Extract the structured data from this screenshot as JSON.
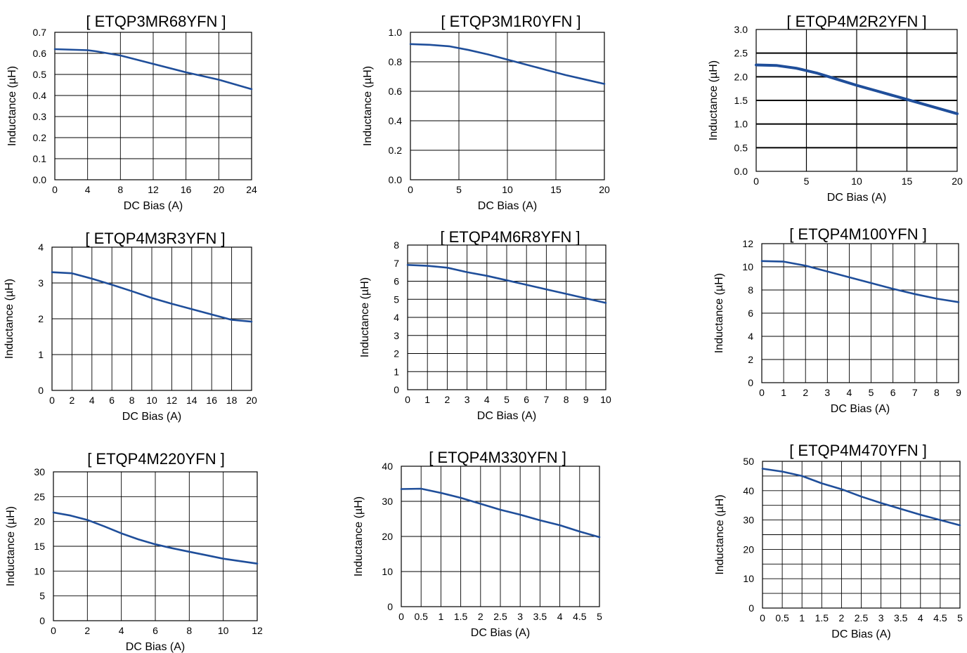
{
  "colors": {
    "curve": "#1f4e9a",
    "grid": "#000000",
    "background": "#ffffff"
  },
  "chart_data": [
    {
      "type": "line",
      "title": "[ ETQP3MR68YFN ]",
      "xlabel": "DC Bias (A)",
      "ylabel": "Inductance (µH)",
      "xlim": [
        0,
        24
      ],
      "ylim": [
        0,
        0.7
      ],
      "xticks": [
        "0",
        "4",
        "8",
        "12",
        "16",
        "20",
        "24"
      ],
      "yticks": [
        "0.0",
        "0.1",
        "0.2",
        "0.3",
        "0.4",
        "0.5",
        "0.6",
        "0.7"
      ],
      "x_grid_count": 6,
      "y_grid_count": 7,
      "grid": true,
      "series": [
        {
          "x": [
            0,
            4,
            5,
            8,
            12,
            16,
            20,
            24
          ],
          "values": [
            0.62,
            0.615,
            0.61,
            0.59,
            0.55,
            0.51,
            0.475,
            0.43
          ]
        }
      ]
    },
    {
      "type": "line",
      "title": "[ ETQP3M1R0YFN ]",
      "xlabel": "DC Bias (A)",
      "ylabel": "Inductance (µH)",
      "xlim": [
        0,
        20
      ],
      "ylim": [
        0,
        1.0
      ],
      "xticks": [
        "0",
        "5",
        "10",
        "15",
        "20"
      ],
      "yticks": [
        "0.0",
        "0.2",
        "0.4",
        "0.6",
        "0.8",
        "1.0"
      ],
      "x_grid_count": 4,
      "y_grid_count": 5,
      "grid": true,
      "series": [
        {
          "x": [
            0,
            2,
            4,
            6,
            8,
            10,
            12,
            14,
            16,
            18,
            20
          ],
          "values": [
            0.92,
            0.915,
            0.905,
            0.88,
            0.85,
            0.815,
            0.78,
            0.745,
            0.71,
            0.68,
            0.65
          ]
        }
      ]
    },
    {
      "type": "line",
      "title": "[ ETQP4M2R2YFN ]",
      "xlabel": "DC Bias (A)",
      "ylabel": "Inductance (µH)",
      "xlim": [
        0,
        20
      ],
      "ylim": [
        0,
        3.0
      ],
      "xticks": [
        "0",
        "5",
        "10",
        "15",
        "20"
      ],
      "yticks": [
        "0.0",
        "0.5",
        "1.0",
        "1.5",
        "2.0",
        "2.5",
        "3.0"
      ],
      "x_grid_count": 4,
      "y_grid_count": 6,
      "grid": true,
      "series": [
        {
          "x": [
            0,
            2,
            4,
            6,
            8,
            10,
            12,
            14,
            16,
            18,
            20
          ],
          "values": [
            2.25,
            2.24,
            2.18,
            2.08,
            1.95,
            1.82,
            1.7,
            1.58,
            1.46,
            1.34,
            1.22
          ]
        }
      ]
    },
    {
      "type": "line",
      "title": "[ ETQP4M3R3YFN ]",
      "xlabel": "DC Bias (A)",
      "ylabel": "Inductance (µH)",
      "xlim": [
        0,
        20
      ],
      "ylim": [
        0,
        4
      ],
      "xticks": [
        "0",
        "2",
        "4",
        "6",
        "8",
        "10",
        "12",
        "14",
        "16",
        "18",
        "20"
      ],
      "yticks": [
        "0",
        "1",
        "2",
        "3",
        "4"
      ],
      "x_grid_count": 10,
      "y_grid_count": 4,
      "grid": true,
      "series": [
        {
          "x": [
            0,
            2,
            4,
            6,
            8,
            10,
            12,
            14,
            16,
            18,
            20
          ],
          "values": [
            3.3,
            3.27,
            3.12,
            2.95,
            2.77,
            2.58,
            2.42,
            2.27,
            2.12,
            1.97,
            1.92
          ]
        }
      ]
    },
    {
      "type": "line",
      "title": "[ ETQP4M6R8YFN ]",
      "xlabel": "DC Bias (A)",
      "ylabel": "Inductance (µH)",
      "xlim": [
        0,
        10
      ],
      "ylim": [
        0,
        8
      ],
      "xticks": [
        "0",
        "1",
        "2",
        "3",
        "4",
        "5",
        "6",
        "7",
        "8",
        "9",
        "10"
      ],
      "yticks": [
        "0",
        "1",
        "2",
        "3",
        "4",
        "5",
        "6",
        "7",
        "8"
      ],
      "x_grid_count": 10,
      "y_grid_count": 8,
      "grid": true,
      "series": [
        {
          "x": [
            0,
            1,
            2,
            3,
            4,
            5,
            6,
            7,
            8,
            9,
            10
          ],
          "values": [
            6.9,
            6.85,
            6.75,
            6.5,
            6.3,
            6.05,
            5.8,
            5.55,
            5.3,
            5.05,
            4.8
          ]
        }
      ]
    },
    {
      "type": "line",
      "title": "[ ETQP4M100YFN ]",
      "xlabel": "DC Bias (A)",
      "ylabel": "Inductance (µH)",
      "xlim": [
        0,
        9
      ],
      "ylim": [
        0,
        12
      ],
      "xticks": [
        "0",
        "1",
        "2",
        "3",
        "4",
        "5",
        "6",
        "7",
        "8",
        "9"
      ],
      "yticks": [
        "0",
        "2",
        "4",
        "6",
        "8",
        "10",
        "12"
      ],
      "x_grid_count": 9,
      "y_grid_count": 6,
      "grid": true,
      "series": [
        {
          "x": [
            0,
            1,
            2,
            3,
            4,
            5,
            6,
            7,
            8,
            9
          ],
          "values": [
            10.5,
            10.45,
            10.1,
            9.6,
            9.1,
            8.6,
            8.1,
            7.65,
            7.25,
            6.95
          ]
        }
      ]
    },
    {
      "type": "line",
      "title": "[ ETQP4M220YFN ]",
      "xlabel": "DC Bias (A)",
      "ylabel": "Inductance (µH)",
      "xlim": [
        0,
        12
      ],
      "ylim": [
        0,
        30
      ],
      "xticks": [
        "0",
        "2",
        "4",
        "6",
        "8",
        "10",
        "12"
      ],
      "yticks": [
        "0",
        "5",
        "10",
        "15",
        "20",
        "25",
        "30"
      ],
      "x_grid_count": 6,
      "y_grid_count": 6,
      "grid": true,
      "series": [
        {
          "x": [
            0,
            1,
            2,
            3,
            4,
            5,
            6,
            7,
            8,
            9,
            10,
            11,
            12
          ],
          "values": [
            21.8,
            21.2,
            20.3,
            19.0,
            17.6,
            16.4,
            15.4,
            14.6,
            13.9,
            13.2,
            12.5,
            12.0,
            11.5
          ]
        }
      ]
    },
    {
      "type": "line",
      "title": "[ ETQP4M330YFN ]",
      "xlabel": "DC Bias (A)",
      "ylabel": "Inductance (µH)",
      "xlim": [
        0,
        5
      ],
      "ylim": [
        0,
        40
      ],
      "xticks": [
        "0",
        "0.5",
        "1",
        "1.5",
        "2",
        "2.5",
        "3",
        "3.5",
        "4",
        "4.5",
        "5"
      ],
      "yticks": [
        "0",
        "10",
        "20",
        "30",
        "40"
      ],
      "x_grid_count": 10,
      "y_grid_count": 4,
      "grid": true,
      "series": [
        {
          "x": [
            0,
            0.5,
            1,
            1.5,
            2,
            2.5,
            3,
            3.5,
            4,
            4.5,
            5
          ],
          "values": [
            33.5,
            33.6,
            32.4,
            31.0,
            29.3,
            27.6,
            26.2,
            24.6,
            23.2,
            21.4,
            19.8
          ]
        }
      ]
    },
    {
      "type": "line",
      "title": "[ ETQP4M470YFN ]",
      "xlabel": "DC Bias (A)",
      "ylabel": "Inductance (µH)",
      "xlim": [
        0,
        5
      ],
      "ylim": [
        0,
        50
      ],
      "xticks": [
        "0",
        "0.5",
        "1",
        "1.5",
        "2",
        "2.5",
        "3",
        "3.5",
        "4",
        "4.5",
        "5"
      ],
      "yticks": [
        "0",
        "10",
        "20",
        "30",
        "40",
        "50"
      ],
      "x_grid_count": 10,
      "y_grid_count": 10,
      "grid": true,
      "series": [
        {
          "x": [
            0,
            0.5,
            1,
            1.5,
            2,
            2.5,
            3,
            3.5,
            4,
            4.5,
            5
          ],
          "values": [
            47.5,
            46.5,
            45.0,
            42.5,
            40.5,
            38.0,
            35.8,
            33.8,
            31.8,
            30.0,
            28.2
          ]
        }
      ]
    }
  ]
}
